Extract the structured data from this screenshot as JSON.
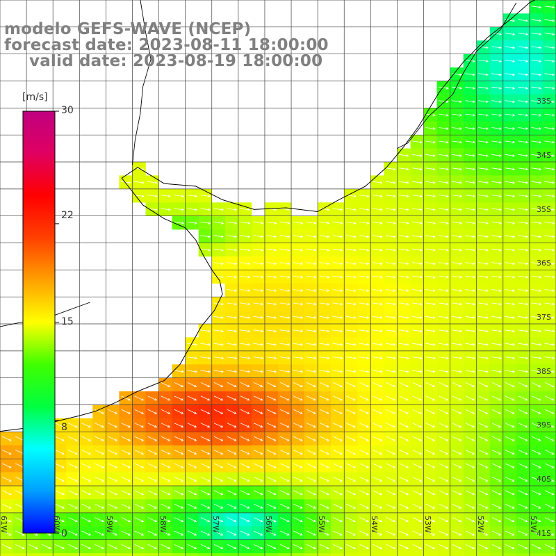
{
  "title": {
    "model": "modelo GEFS-WAVE (NCEP)",
    "forecast": "forecast date: 2023-08-11 18:00:00",
    "valid": "valid date: 2023-08-19 18:00:00"
  },
  "colorbar": {
    "unit": "[m/s]",
    "min": 0,
    "max": 30,
    "ticks": [
      "30",
      "22",
      "15",
      "8",
      "0"
    ],
    "tick_values": [
      30,
      22,
      15,
      8,
      0
    ],
    "stops": [
      "#0000ff",
      "#00a0ff",
      "#00ffff",
      "#00ff40",
      "#40ff00",
      "#ffff00",
      "#ffa000",
      "#ff4000",
      "#ff0000",
      "#e00060",
      "#c00080"
    ]
  },
  "map": {
    "lon_range": [
      -61,
      -50.5
    ],
    "lat_range": [
      -41.3,
      -31
    ],
    "lat_labels": [
      "33S",
      "34S",
      "35S",
      "36S",
      "37S",
      "38S",
      "39S",
      "40S",
      "41S"
    ],
    "lat_values": [
      -33,
      -34,
      -35,
      -36,
      -37,
      -38,
      -39,
      -40,
      -41
    ],
    "lon_labels": [
      "61W",
      "60W",
      "59W",
      "58W",
      "57W",
      "56W",
      "55W",
      "54W",
      "53W",
      "52W",
      "51W"
    ],
    "lon_values": [
      -61,
      -60,
      -59,
      -58,
      -57,
      -56,
      -55,
      -54,
      -53,
      -52,
      -51
    ],
    "grid_color": "#404040",
    "arrow_color": "#ffffff",
    "land_color": "#ffffff"
  }
}
